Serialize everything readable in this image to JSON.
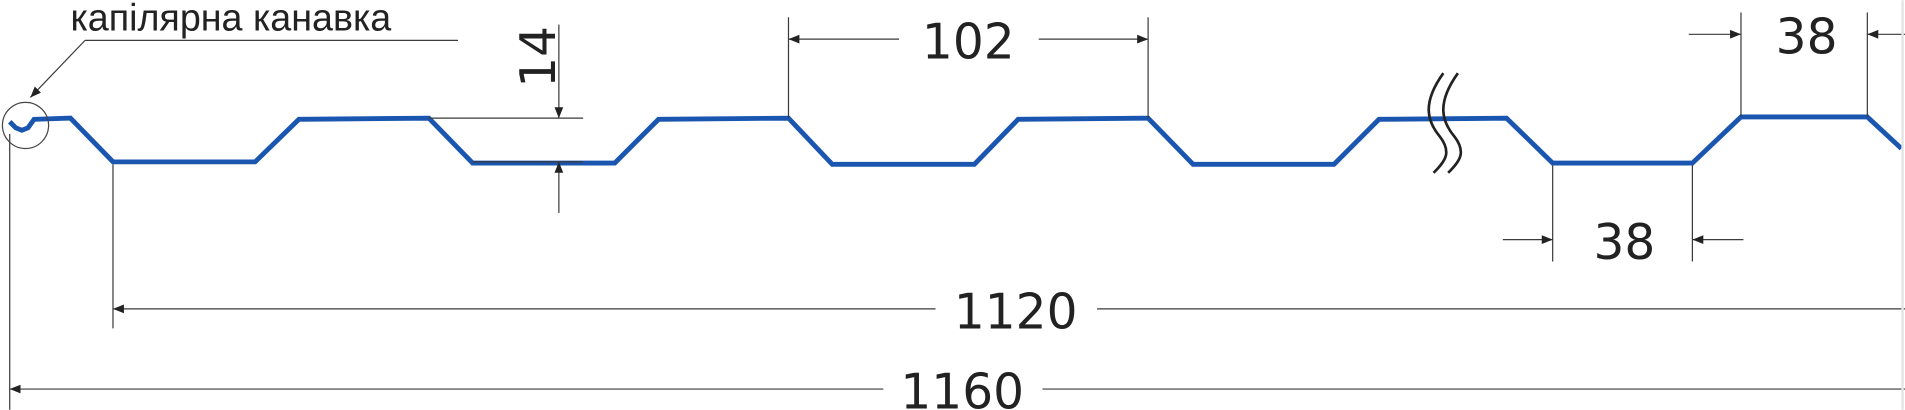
{
  "label": "капілярна канавка",
  "dimensions": {
    "height": "14",
    "pitch": "102",
    "top_flat": "38",
    "bottom_flat": "38",
    "effective_width": "1120",
    "total_width": "1160"
  },
  "colors": {
    "profile": "#1a55b0",
    "lines": "#3a3a3a"
  }
}
